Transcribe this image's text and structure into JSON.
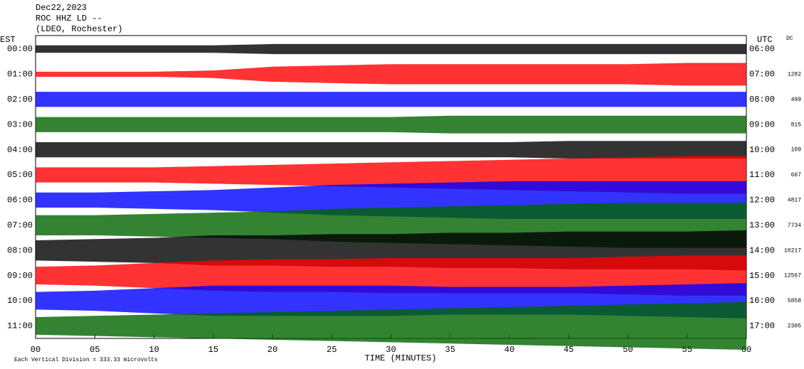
{
  "chart_data": {
    "type": "helicorder",
    "title_lines": [
      "Dec22,2023",
      "ROC HHZ LD --",
      "(LDEO, Rochester)"
    ],
    "left_axis_label": "EST",
    "right_axis_label": "UTC",
    "dc_label": "DC",
    "x_label": "TIME (MINUTES)",
    "footnote": "Each Vertical Division = 333.33 microvolts",
    "xlim": [
      0,
      60
    ],
    "xticks": [
      {
        "value": 0,
        "label": "00"
      },
      {
        "value": 5,
        "label": "05"
      },
      10,
      15,
      20,
      25,
      30,
      35,
      40,
      45,
      50,
      55,
      60
    ],
    "x": [
      0,
      5,
      10,
      15,
      20,
      25,
      30,
      35,
      40,
      45,
      50,
      55,
      60
    ],
    "rows": [
      {
        "est": "00:00",
        "utc": "06:00",
        "dc": null,
        "color": "#000000",
        "values": [
          0.3,
          0.3,
          0.3,
          0.3,
          0.4,
          0.4,
          0.4,
          0.4,
          0.4,
          0.4,
          0.4,
          0.4,
          0.4
        ]
      },
      {
        "est": "01:00",
        "utc": "07:00",
        "dc": "1282",
        "color": "#ff0000",
        "values": [
          0.2,
          0.2,
          0.2,
          0.3,
          0.6,
          0.7,
          0.8,
          0.8,
          0.8,
          0.8,
          0.8,
          0.9,
          0.9
        ]
      },
      {
        "est": "02:00",
        "utc": "08:00",
        "dc": "499",
        "color": "#0000ff",
        "values": [
          0.6,
          0.6,
          0.6,
          0.6,
          0.6,
          0.6,
          0.6,
          0.6,
          0.6,
          0.6,
          0.6,
          0.6,
          0.6
        ]
      },
      {
        "est": "03:00",
        "utc": "09:00",
        "dc": "815",
        "color": "#006400",
        "values": [
          0.6,
          0.6,
          0.6,
          0.6,
          0.6,
          0.6,
          0.6,
          0.7,
          0.7,
          0.7,
          0.7,
          0.7,
          0.7
        ]
      },
      {
        "est": "04:00",
        "utc": "10:00",
        "dc": "109",
        "color": "#000000",
        "values": [
          0.6,
          0.6,
          0.6,
          0.6,
          0.6,
          0.6,
          0.6,
          0.6,
          0.6,
          0.7,
          0.7,
          0.7,
          0.7
        ]
      },
      {
        "est": "05:00",
        "utc": "11:00",
        "dc": "667",
        "color": "#ff0000",
        "values": [
          0.6,
          0.6,
          0.6,
          0.7,
          0.8,
          0.9,
          1.0,
          1.1,
          1.2,
          1.3,
          1.4,
          1.5,
          1.5
        ]
      },
      {
        "est": "06:00",
        "utc": "12:00",
        "dc": "4817",
        "color": "#0000ff",
        "values": [
          0.6,
          0.6,
          0.7,
          0.8,
          1.0,
          1.2,
          1.3,
          1.4,
          1.5,
          1.5,
          1.5,
          1.5,
          1.5
        ]
      },
      {
        "est": "07:00",
        "utc": "13:00",
        "dc": "7734",
        "color": "#006400",
        "values": [
          0.8,
          0.8,
          0.9,
          1.0,
          1.1,
          1.3,
          1.4,
          1.5,
          1.6,
          1.7,
          1.8,
          1.8,
          1.8
        ]
      },
      {
        "est": "08:00",
        "utc": "14:00",
        "dc": "10217",
        "color": "#000000",
        "values": [
          0.8,
          0.9,
          1.0,
          1.2,
          1.2,
          1.3,
          1.3,
          1.4,
          1.4,
          1.5,
          1.5,
          1.5,
          1.6
        ]
      },
      {
        "est": "09:00",
        "utc": "15:00",
        "dc": "12567",
        "color": "#ff0000",
        "values": [
          0.7,
          0.8,
          1.0,
          1.2,
          1.3,
          1.3,
          1.4,
          1.4,
          1.4,
          1.4,
          1.5,
          1.6,
          1.6
        ]
      },
      {
        "est": "10:00",
        "utc": "16:00",
        "dc": "5858",
        "color": "#0000ff",
        "values": [
          0.7,
          0.8,
          1.0,
          1.2,
          1.2,
          1.2,
          1.2,
          1.1,
          1.1,
          1.1,
          1.2,
          1.3,
          1.4
        ]
      },
      {
        "est": "11:00",
        "utc": "17:00",
        "dc": "2305",
        "color": "#006400",
        "values": [
          0.7,
          0.8,
          0.9,
          1.0,
          1.1,
          1.2,
          1.3,
          1.4,
          1.5,
          1.6,
          1.7,
          1.8,
          1.9
        ]
      }
    ]
  }
}
